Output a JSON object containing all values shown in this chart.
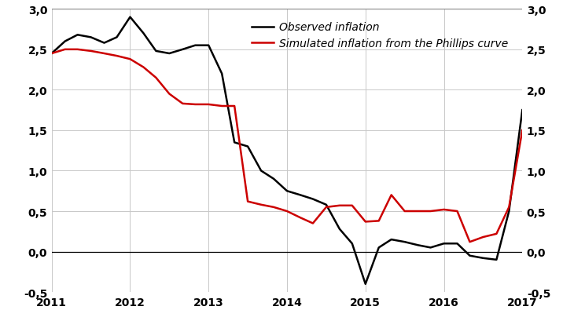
{
  "observed_x": [
    2011.0,
    2011.17,
    2011.33,
    2011.5,
    2011.67,
    2011.83,
    2012.0,
    2012.17,
    2012.33,
    2012.5,
    2012.67,
    2012.83,
    2013.0,
    2013.17,
    2013.33,
    2013.5,
    2013.67,
    2013.83,
    2014.0,
    2014.17,
    2014.33,
    2014.5,
    2014.67,
    2014.83,
    2015.0,
    2015.17,
    2015.33,
    2015.5,
    2015.67,
    2015.83,
    2016.0,
    2016.17,
    2016.33,
    2016.5,
    2016.67,
    2016.83,
    2017.0
  ],
  "observed_y": [
    2.45,
    2.6,
    2.68,
    2.65,
    2.58,
    2.65,
    2.9,
    2.7,
    2.48,
    2.45,
    2.5,
    2.55,
    2.55,
    2.2,
    1.35,
    1.3,
    1.0,
    0.9,
    0.75,
    0.7,
    0.65,
    0.58,
    0.28,
    0.1,
    -0.4,
    0.05,
    0.15,
    0.12,
    0.08,
    0.05,
    0.1,
    0.1,
    -0.05,
    -0.08,
    -0.1,
    0.5,
    1.75
  ],
  "simulated_x": [
    2011.0,
    2011.17,
    2011.33,
    2011.5,
    2011.67,
    2011.83,
    2012.0,
    2012.17,
    2012.33,
    2012.5,
    2012.67,
    2012.83,
    2013.0,
    2013.17,
    2013.33,
    2013.5,
    2013.67,
    2013.83,
    2014.0,
    2014.17,
    2014.33,
    2014.5,
    2014.67,
    2014.83,
    2015.0,
    2015.17,
    2015.33,
    2015.5,
    2015.67,
    2015.83,
    2016.0,
    2016.17,
    2016.33,
    2016.5,
    2016.67,
    2016.83,
    2017.0
  ],
  "simulated_y": [
    2.45,
    2.5,
    2.5,
    2.48,
    2.45,
    2.42,
    2.38,
    2.28,
    2.15,
    1.95,
    1.83,
    1.82,
    1.82,
    1.8,
    1.8,
    0.62,
    0.58,
    0.55,
    0.5,
    0.42,
    0.35,
    0.55,
    0.57,
    0.57,
    0.37,
    0.38,
    0.7,
    0.5,
    0.5,
    0.5,
    0.52,
    0.5,
    0.12,
    0.18,
    0.22,
    0.55,
    1.5
  ],
  "observed_color": "#000000",
  "simulated_color": "#cc0000",
  "observed_label": "Observed inflation",
  "simulated_label": "Simulated inflation from the Phillips curve",
  "ylim": [
    -0.5,
    3.0
  ],
  "yticks": [
    -0.5,
    0.0,
    0.5,
    1.0,
    1.5,
    2.0,
    2.5,
    3.0
  ],
  "xlim": [
    2011.0,
    2017.0
  ],
  "xticks": [
    2011,
    2012,
    2013,
    2014,
    2015,
    2016,
    2017
  ],
  "grid_color": "#c8c8c8",
  "background_color": "#ffffff",
  "linewidth": 1.8
}
